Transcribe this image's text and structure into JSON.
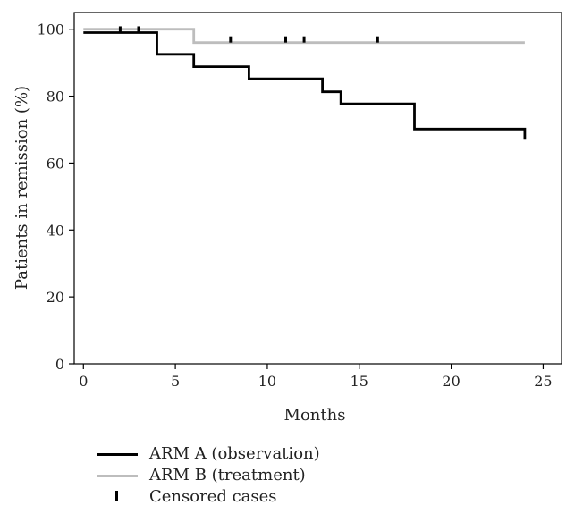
{
  "chart_data": {
    "type": "line",
    "xlabel": "Months",
    "ylabel": "Patients in remission (%)",
    "xlim": [
      -0.5,
      26
    ],
    "ylim": [
      0,
      105
    ],
    "x_ticks": [
      "0",
      "5",
      "10",
      "15",
      "20",
      "25"
    ],
    "y_ticks": [
      "0",
      "20",
      "40",
      "60",
      "80",
      "100"
    ],
    "grid": false,
    "legend_position": "bottom-left",
    "series": [
      {
        "name": "ARM A (observation)",
        "color": "#000000",
        "step_points": [
          [
            0,
            99
          ],
          [
            4,
            99
          ],
          [
            4,
            92.5
          ],
          [
            6,
            92.5
          ],
          [
            6,
            88.8
          ],
          [
            9,
            88.8
          ],
          [
            9,
            85.2
          ],
          [
            13,
            85.2
          ],
          [
            13,
            81.3
          ],
          [
            14,
            81.3
          ],
          [
            14,
            77.7
          ],
          [
            18,
            77.7
          ],
          [
            18,
            70.2
          ],
          [
            24,
            70.2
          ],
          [
            24,
            67
          ]
        ],
        "censored": [
          [
            2,
            99
          ],
          [
            3,
            99
          ]
        ]
      },
      {
        "name": "ARM B (treatment)",
        "color": "#bdbdbd",
        "step_points": [
          [
            0,
            100
          ],
          [
            6,
            100
          ],
          [
            6,
            96
          ],
          [
            24,
            96
          ]
        ],
        "censored": [
          [
            8,
            96
          ],
          [
            11,
            96
          ],
          [
            12,
            96
          ],
          [
            16,
            96
          ]
        ]
      }
    ],
    "legend": [
      {
        "label": "ARM A (observation)",
        "kind": "line",
        "color": "#000000"
      },
      {
        "label": "ARM B (treatment)",
        "kind": "line",
        "color": "#bdbdbd"
      },
      {
        "label": "Censored cases",
        "kind": "tick",
        "color": "#000000"
      }
    ]
  }
}
